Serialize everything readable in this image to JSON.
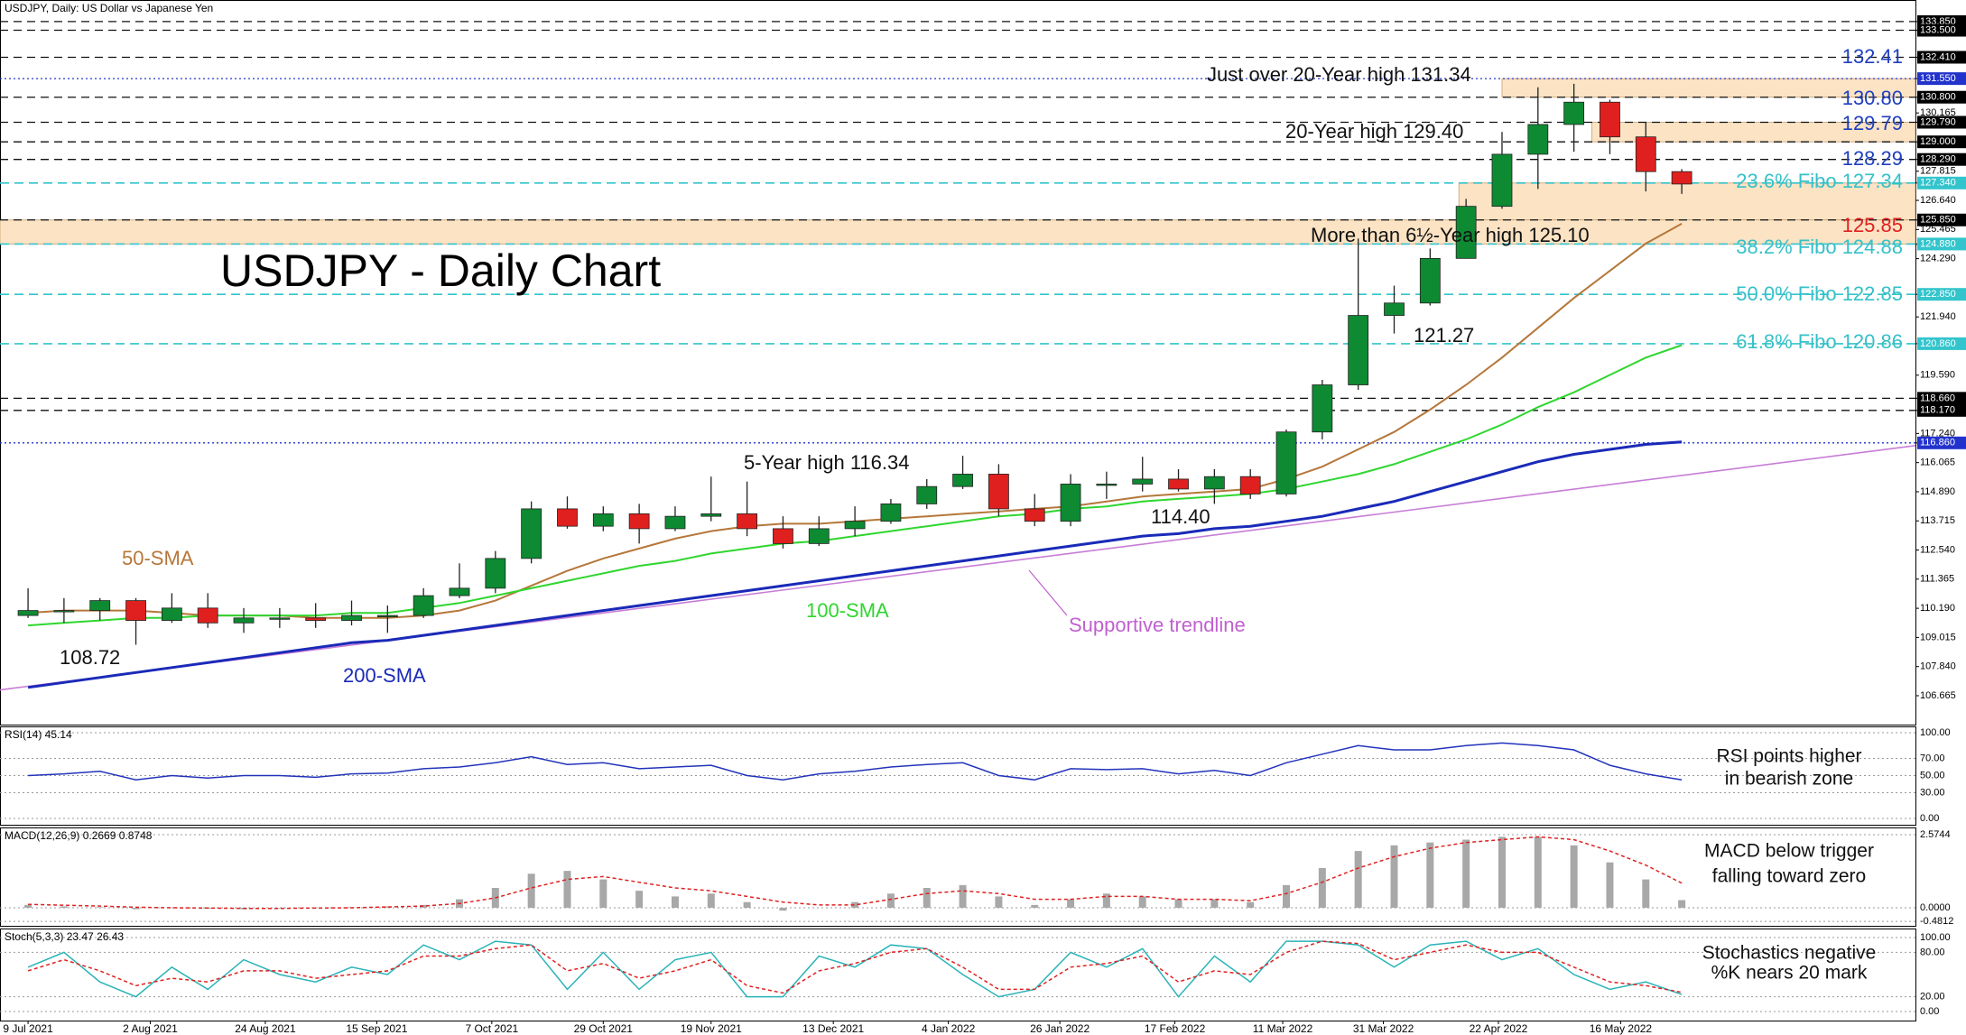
{
  "chart_data": [
    {
      "type": "candlestick",
      "subtitle": "USDJPY, Daily:  US Dollar vs Japanese Yen",
      "title": "USDJPY - Daily Chart",
      "xlim": [
        -0.78,
        52.5
      ],
      "xticks": [
        {
          "value": 0,
          "label": "9 Jul 2021"
        },
        {
          "value": 3.4,
          "label": "2 Aug 2021"
        },
        {
          "value": 6.6,
          "label": "24 Aug 2021"
        },
        {
          "value": 9.7,
          "label": "15 Sep 2021"
        },
        {
          "value": 12.9,
          "label": "7 Oct 2021"
        },
        {
          "value": 16.0,
          "label": "29 Oct 2021"
        },
        {
          "value": 19.0,
          "label": "19 Nov 2021"
        },
        {
          "value": 22.4,
          "label": "13 Dec 2021"
        },
        {
          "value": 25.6,
          "label": "4 Jan 2022"
        },
        {
          "value": 28.7,
          "label": "26 Jan 2022"
        },
        {
          "value": 31.9,
          "label": "17 Feb 2022"
        },
        {
          "value": 34.9,
          "label": "11 Mar 2022"
        },
        {
          "value": 37.7,
          "label": "31 Mar 2022"
        },
        {
          "value": 40.9,
          "label": "22 Apr 2022"
        },
        {
          "value": 44.3,
          "label": "16 May 2022"
        }
      ],
      "ylim": [
        105.5,
        134.72
      ],
      "yticks": [
        {
          "value": 133.85,
          "label": "133.850"
        },
        {
          "value": 133.5,
          "label": "133.500"
        },
        {
          "value": 132.41,
          "label": "132.410"
        },
        {
          "value": 131.55,
          "label": "131.550"
        },
        {
          "value": 130.8,
          "label": "130.800"
        },
        {
          "value": 130.165,
          "label": "130.165"
        },
        {
          "value": 129.79,
          "label": "129.790"
        },
        {
          "value": 129.0,
          "label": "129.000"
        },
        {
          "value": 128.29,
          "label": "128.290"
        },
        {
          "value": 127.815,
          "label": "127.815"
        },
        {
          "value": 127.34,
          "label": "127.340"
        },
        {
          "value": 126.64,
          "label": "126.640"
        },
        {
          "value": 125.85,
          "label": "125.850"
        },
        {
          "value": 125.465,
          "label": "125.465"
        },
        {
          "value": 124.88,
          "label": "124.880"
        },
        {
          "value": 124.29,
          "label": "124.290"
        },
        {
          "value": 122.85,
          "label": "122.850"
        },
        {
          "value": 121.94,
          "label": "121.940"
        },
        {
          "value": 120.86,
          "label": "120.860"
        },
        {
          "value": 119.59,
          "label": "119.590"
        },
        {
          "value": 118.66,
          "label": "118.660"
        },
        {
          "value": 118.17,
          "label": "118.170"
        },
        {
          "value": 117.24,
          "label": "117.240"
        },
        {
          "value": 116.86,
          "label": "116.860"
        },
        {
          "value": 116.065,
          "label": "116.065"
        },
        {
          "value": 114.89,
          "label": "114.890"
        },
        {
          "value": 113.715,
          "label": "113.715"
        },
        {
          "value": 112.54,
          "label": "112.540"
        },
        {
          "value": 111.365,
          "label": "111.365"
        },
        {
          "value": 110.19,
          "label": "110.190"
        },
        {
          "value": 109.015,
          "label": "109.015"
        },
        {
          "value": 107.84,
          "label": "107.840"
        },
        {
          "value": 106.665,
          "label": "106.665"
        }
      ],
      "levels": [
        {
          "value": 133.85,
          "style": "dash"
        },
        {
          "value": 133.5,
          "style": "dash"
        },
        {
          "value": 132.41,
          "style": "dash"
        },
        {
          "value": 131.55,
          "style": "dot"
        },
        {
          "value": 130.8,
          "style": "dash"
        },
        {
          "value": 129.79,
          "style": "dash"
        },
        {
          "value": 129.0,
          "style": "dash"
        },
        {
          "value": 128.29,
          "style": "dash"
        },
        {
          "value": 127.34,
          "style": "fib"
        },
        {
          "value": 125.85,
          "style": "dash"
        },
        {
          "value": 124.88,
          "style": "fib"
        },
        {
          "value": 122.85,
          "style": "fib"
        },
        {
          "value": 120.86,
          "style": "fib"
        },
        {
          "value": 118.66,
          "style": "dash"
        },
        {
          "value": 118.17,
          "style": "dash"
        },
        {
          "value": 116.86,
          "style": "dot"
        }
      ],
      "level_colors": {
        "dash": "#111111",
        "dot": "#2233cc",
        "fib": "#33c4cc"
      },
      "zones": [
        {
          "low": 130.8,
          "high": 131.55,
          "start": 41
        },
        {
          "low": 129.0,
          "high": 129.79,
          "start": 43.5
        },
        {
          "low": 125.85,
          "high": 127.34,
          "start": 39.8
        },
        {
          "low": 124.88,
          "high": 125.85,
          "start": -0.78
        }
      ],
      "zone_color": "#fbe3c4",
      "trendline": {
        "color": "#c77dd6",
        "values": [
          106.9,
          116.75
        ]
      },
      "up_color": "#0e8a32",
      "down_color": "#e0201e",
      "open": [
        109.9,
        110.1,
        110.1,
        110.5,
        109.7,
        110.2,
        109.6,
        109.8,
        109.8,
        109.7,
        109.9,
        109.9,
        110.7,
        111.0,
        112.2,
        114.2,
        113.5,
        114.0,
        113.4,
        113.9,
        114.0,
        113.4,
        112.8,
        113.4,
        113.7,
        114.4,
        115.1,
        115.6,
        114.2,
        113.7,
        115.2,
        115.2,
        115.4,
        115.0,
        115.5,
        114.8,
        117.3,
        119.2,
        122.0,
        122.5,
        124.3,
        126.4,
        128.5,
        129.7,
        130.6,
        129.2,
        127.8
      ],
      "high": [
        111.0,
        110.6,
        110.6,
        110.6,
        110.8,
        110.8,
        110.2,
        110.2,
        110.4,
        110.5,
        110.3,
        111.0,
        112.0,
        112.5,
        114.5,
        114.7,
        114.3,
        114.4,
        114.3,
        115.5,
        115.3,
        113.9,
        113.9,
        114.3,
        114.6,
        115.4,
        116.34,
        116.0,
        114.8,
        115.6,
        115.7,
        116.3,
        115.8,
        115.8,
        115.8,
        117.4,
        119.4,
        125.1,
        123.2,
        124.7,
        126.7,
        129.4,
        131.2,
        131.34,
        130.7,
        129.8,
        127.9
      ],
      "low": [
        109.8,
        109.6,
        109.7,
        108.72,
        109.6,
        109.4,
        109.2,
        109.4,
        109.4,
        109.5,
        109.2,
        109.8,
        110.6,
        110.8,
        112.0,
        113.4,
        113.3,
        112.8,
        113.3,
        113.7,
        113.1,
        112.6,
        112.7,
        113.1,
        113.6,
        114.2,
        115.0,
        113.9,
        113.5,
        113.5,
        114.6,
        114.9,
        114.9,
        114.4,
        114.6,
        114.7,
        117.0,
        119.0,
        121.27,
        122.4,
        124.3,
        126.3,
        127.1,
        128.6,
        128.5,
        127.0,
        126.9
      ],
      "close": [
        110.1,
        110.1,
        110.5,
        109.7,
        110.2,
        109.6,
        109.8,
        109.8,
        109.7,
        109.9,
        109.9,
        110.7,
        111.0,
        112.2,
        114.2,
        113.5,
        114.0,
        113.4,
        113.9,
        114.0,
        113.4,
        112.8,
        113.4,
        113.7,
        114.4,
        115.1,
        115.6,
        114.2,
        113.7,
        115.2,
        115.2,
        115.4,
        115.0,
        115.5,
        114.8,
        117.3,
        119.2,
        122.0,
        122.5,
        124.3,
        126.4,
        128.5,
        129.7,
        130.6,
        129.2,
        127.8,
        127.3
      ],
      "series": [
        {
          "name": "50-SMA",
          "color": "#b5773a",
          "values": [
            110.0,
            110.1,
            110.1,
            110.1,
            110.0,
            109.9,
            109.9,
            109.9,
            109.8,
            109.8,
            109.8,
            109.9,
            110.1,
            110.5,
            111.1,
            111.7,
            112.2,
            112.6,
            113.0,
            113.3,
            113.5,
            113.6,
            113.6,
            113.7,
            113.8,
            113.9,
            114.0,
            114.1,
            114.2,
            114.3,
            114.5,
            114.7,
            114.8,
            114.9,
            115.0,
            115.4,
            115.9,
            116.6,
            117.3,
            118.2,
            119.2,
            120.3,
            121.5,
            122.7,
            123.8,
            124.9,
            125.7
          ]
        },
        {
          "name": "100-SMA",
          "color": "#2fd62f",
          "values": [
            109.5,
            109.6,
            109.7,
            109.8,
            109.8,
            109.9,
            109.9,
            109.9,
            109.9,
            110.0,
            110.0,
            110.2,
            110.4,
            110.7,
            111.0,
            111.3,
            111.6,
            111.9,
            112.1,
            112.4,
            112.6,
            112.8,
            112.9,
            113.1,
            113.3,
            113.5,
            113.7,
            113.9,
            114.0,
            114.2,
            114.3,
            114.5,
            114.6,
            114.7,
            114.8,
            115.0,
            115.3,
            115.6,
            116.0,
            116.5,
            117.0,
            117.6,
            118.3,
            118.9,
            119.6,
            120.3,
            120.8
          ]
        },
        {
          "name": "200-SMA",
          "color": "#1a2ab8",
          "values": [
            107.0,
            107.2,
            107.4,
            107.6,
            107.8,
            108.0,
            108.2,
            108.4,
            108.6,
            108.8,
            108.9,
            109.1,
            109.3,
            109.5,
            109.7,
            109.9,
            110.1,
            110.3,
            110.5,
            110.7,
            110.9,
            111.1,
            111.3,
            111.5,
            111.7,
            111.9,
            112.1,
            112.3,
            112.5,
            112.7,
            112.9,
            113.1,
            113.2,
            113.4,
            113.5,
            113.7,
            113.9,
            114.2,
            114.5,
            114.9,
            115.3,
            115.7,
            116.1,
            116.4,
            116.6,
            116.8,
            116.9
          ]
        }
      ],
      "annotations": [
        {
          "text": "Just over 20-Year high 131.34",
          "color": "#111111"
        },
        {
          "text": "20-Year high 129.40",
          "color": "#111111"
        },
        {
          "text": "More than 6½-Year high 125.10",
          "color": "#111111"
        },
        {
          "text": "121.27",
          "color": "#111111"
        },
        {
          "text": "5-Year high 116.34",
          "color": "#111111"
        },
        {
          "text": "114.40",
          "color": "#111111"
        },
        {
          "text": "108.72",
          "color": "#111111"
        },
        {
          "text": "132.41",
          "color": "#1f3fbf"
        },
        {
          "text": "130.80",
          "color": "#1f3fbf"
        },
        {
          "text": "129.79",
          "color": "#1f3fbf"
        },
        {
          "text": "128.29",
          "color": "#1f3fbf"
        },
        {
          "text": "23.6% Fibo 127.34",
          "color": "#36c0c8"
        },
        {
          "text": "125.85",
          "color": "#e0201e"
        },
        {
          "text": "38.2% Fibo 124.88",
          "color": "#36c0c8"
        },
        {
          "text": "50.0% Fibo 122.85",
          "color": "#36c0c8"
        },
        {
          "text": "61.8% Fibo 120.86",
          "color": "#36c0c8"
        },
        {
          "text": "Supportive trendline",
          "color": "#c060d0"
        }
      ]
    },
    {
      "type": "line",
      "title": "RSI(14) 45.14",
      "ylim": [
        -7.4,
        107.4
      ],
      "yticks": [
        {
          "value": 100,
          "label": "100.00"
        },
        {
          "value": 70,
          "label": "70.00"
        },
        {
          "value": 50,
          "label": "50.00"
        },
        {
          "value": 30,
          "label": "30.00"
        },
        {
          "value": 0,
          "label": "0.00"
        }
      ],
      "series": [
        {
          "color": "#2233bb",
          "values": [
            50,
            52,
            55,
            45,
            50,
            47,
            50,
            50,
            48,
            52,
            53,
            58,
            60,
            65,
            72,
            63,
            65,
            58,
            60,
            62,
            50,
            45,
            52,
            55,
            60,
            63,
            65,
            50,
            45,
            58,
            57,
            58,
            52,
            56,
            50,
            65,
            75,
            85,
            80,
            80,
            85,
            88,
            85,
            80,
            62,
            52,
            45
          ]
        }
      ],
      "annotations": [
        {
          "text": "RSI points higher",
          "color": "#111111"
        },
        {
          "text": "in bearish zone",
          "color": "#111111"
        }
      ]
    },
    {
      "type": "macd",
      "title": "MACD(12,26,9) 0.2669 0.8748",
      "ylim": [
        -0.635,
        2.83
      ],
      "yticks": [
        {
          "value": 2.5744,
          "label": "2.5744"
        },
        {
          "value": 0,
          "label": "0.0000"
        },
        {
          "value": -0.4812,
          "label": "-0.4812"
        }
      ],
      "series": [
        {
          "kind": "bar",
          "color": "#a8a8a8",
          "values": [
            0.1,
            0.05,
            0.02,
            -0.05,
            0.0,
            -0.03,
            -0.05,
            -0.02,
            0.0,
            0.02,
            0.05,
            0.1,
            0.3,
            0.7,
            1.2,
            1.3,
            1.0,
            0.6,
            0.4,
            0.5,
            0.2,
            -0.1,
            0.0,
            0.2,
            0.5,
            0.7,
            0.8,
            0.4,
            0.1,
            0.3,
            0.5,
            0.4,
            0.3,
            0.3,
            0.2,
            0.8,
            1.4,
            2.0,
            2.2,
            2.3,
            2.4,
            2.5,
            2.5,
            2.2,
            1.6,
            1.0,
            0.27
          ]
        },
        {
          "kind": "line",
          "color": "#e02020",
          "values": [
            0.12,
            0.09,
            0.06,
            0.02,
            0.0,
            -0.01,
            -0.02,
            -0.02,
            -0.01,
            0.0,
            0.03,
            0.06,
            0.15,
            0.35,
            0.7,
            1.0,
            1.1,
            0.9,
            0.7,
            0.6,
            0.4,
            0.2,
            0.1,
            0.1,
            0.3,
            0.5,
            0.6,
            0.5,
            0.3,
            0.3,
            0.4,
            0.4,
            0.3,
            0.3,
            0.25,
            0.5,
            0.9,
            1.4,
            1.8,
            2.1,
            2.3,
            2.4,
            2.5,
            2.4,
            2.0,
            1.5,
            0.87
          ]
        }
      ],
      "annotations": [
        {
          "text": "MACD below trigger",
          "color": "#111111"
        },
        {
          "text": "falling toward zero",
          "color": "#111111"
        }
      ]
    },
    {
      "type": "line",
      "title": "Stoch(5,3,3) 23.47 26.43",
      "ylim": [
        -12.2,
        112.2
      ],
      "yticks": [
        {
          "value": 100,
          "label": "100.00"
        },
        {
          "value": 80,
          "label": "80.00"
        },
        {
          "value": 20,
          "label": "20.00"
        },
        {
          "value": 0,
          "label": "0.00"
        }
      ],
      "series": [
        {
          "color": "#2ab3b8",
          "values": [
            60,
            80,
            40,
            20,
            60,
            30,
            70,
            50,
            40,
            60,
            50,
            90,
            70,
            95,
            90,
            30,
            80,
            30,
            70,
            80,
            20,
            20,
            75,
            60,
            90,
            85,
            50,
            20,
            30,
            80,
            60,
            85,
            20,
            75,
            40,
            95,
            95,
            90,
            60,
            90,
            95,
            70,
            85,
            50,
            30,
            40,
            23
          ]
        },
        {
          "color": "#e02020",
          "dash": true,
          "values": [
            55,
            70,
            55,
            35,
            45,
            40,
            55,
            55,
            45,
            50,
            55,
            75,
            75,
            85,
            90,
            55,
            65,
            45,
            55,
            70,
            35,
            25,
            55,
            65,
            80,
            85,
            60,
            30,
            30,
            60,
            65,
            75,
            40,
            55,
            50,
            80,
            95,
            92,
            70,
            80,
            90,
            80,
            80,
            60,
            40,
            35,
            26
          ]
        }
      ],
      "annotations": [
        {
          "text": "Stochastics negative",
          "color": "#111111"
        },
        {
          "text": "%K nears 20 mark",
          "color": "#111111"
        }
      ]
    }
  ]
}
